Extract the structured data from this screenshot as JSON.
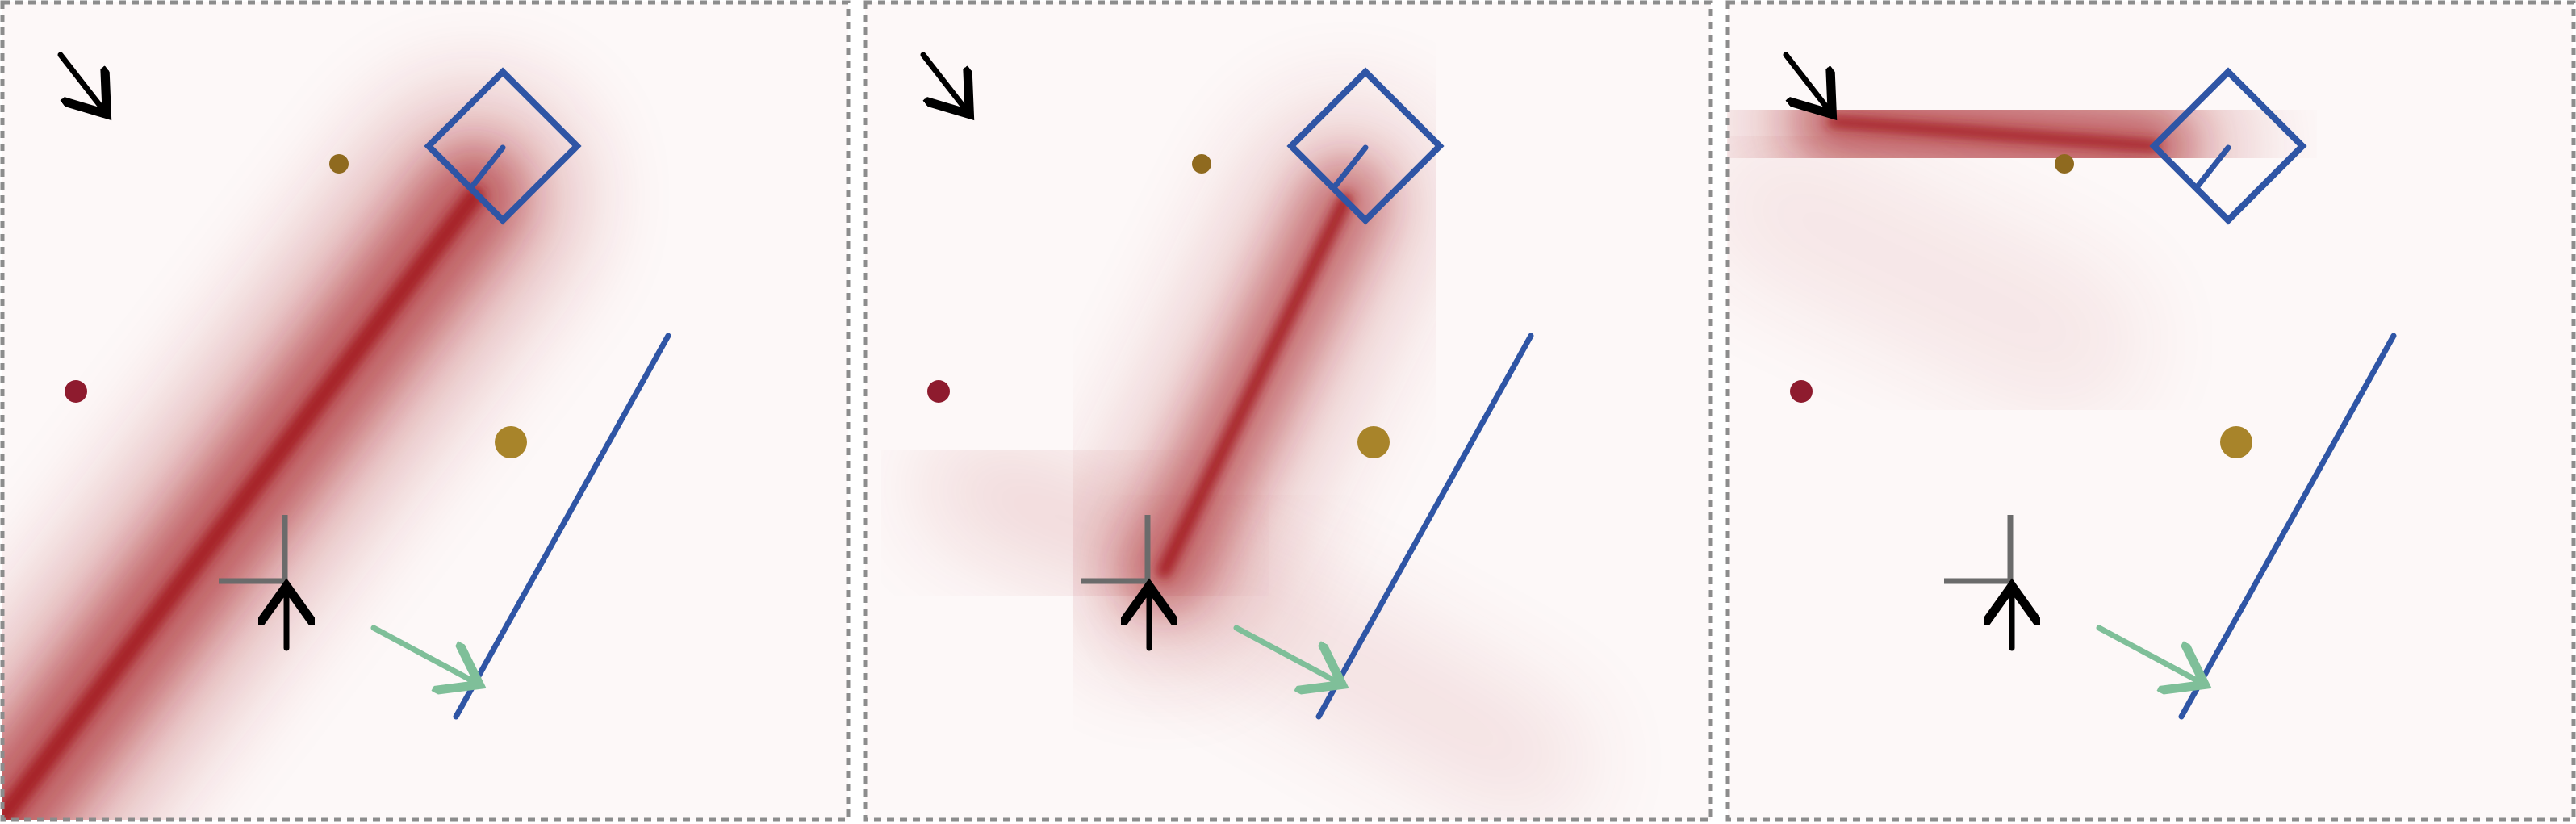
{
  "figure": {
    "panel_count": 3,
    "colors": {
      "heat": "#a41c23",
      "heat_bg": "#fdf8f8",
      "frame": "#8c8c8c",
      "blue": "#2f55a5",
      "dot_dark_red": "#8e1b2e",
      "dot_gold": "#a8842a",
      "dot_gold_small": "#8f6a1f",
      "green_arrow": "#7fbf99",
      "cross": "#6b6b6b",
      "arrow_black": "#000000"
    },
    "icons": [
      "black-arrow-icon",
      "blue-square-icon",
      "blue-line-icon",
      "green-arrow-icon",
      "crosshair-icon",
      "red-dot-icon",
      "gold-dot-icon"
    ],
    "panels": [
      {
        "heat_shape": "diagonal-band-from-bottom-left-to-square"
      },
      {
        "heat_shape": "band-from-crosshair-to-square"
      },
      {
        "heat_shape": "horizontal-band-from-arrow-to-square"
      }
    ]
  }
}
